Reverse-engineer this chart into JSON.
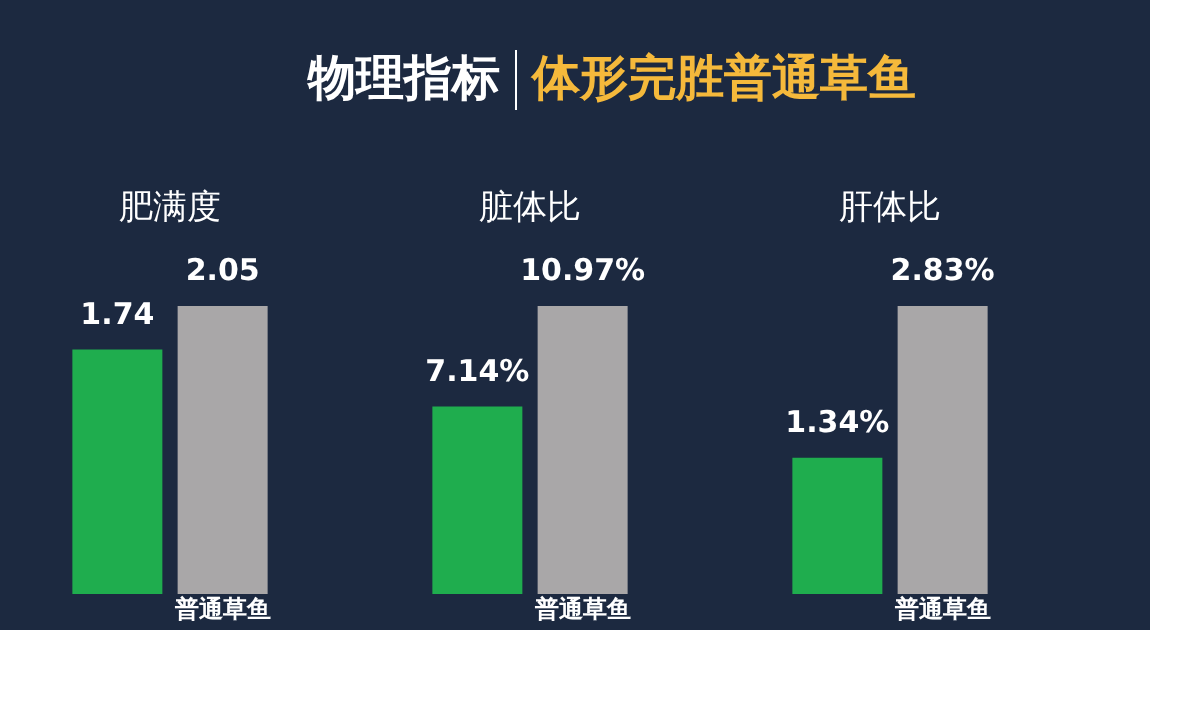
{
  "chart_data": [
    {
      "type": "other",
      "title": "物理指标",
      "subtitle": "体形完胜普通草鱼"
    },
    {
      "type": "bar",
      "title": "肥满度",
      "categories": [
        null,
        "普通草鱼"
      ],
      "values": [
        1.74,
        2.05
      ],
      "colors": [
        "#1fad4e",
        "#a9a7a8"
      ],
      "value_labels": [
        "1.74",
        "2.05"
      ],
      "tick_labels": "x",
      "grid": false
    },
    {
      "type": "bar",
      "title": "脏体比",
      "categories": [
        null,
        "普通草鱼"
      ],
      "values": [
        7.14,
        10.97
      ],
      "colors": [
        "#1fad4e",
        "#a9a7a8"
      ],
      "value_labels": [
        "7.14%",
        "10.97%"
      ],
      "tick_labels": "x",
      "grid": false
    },
    {
      "type": "bar",
      "title": "肝体比",
      "categories": [
        null,
        "普通草鱼"
      ],
      "values": [
        1.34,
        2.83
      ],
      "colors": [
        "#1fad4e",
        "#a9a7a8"
      ],
      "value_labels": [
        "1.34%",
        "2.83%"
      ],
      "tick_labels": "x",
      "grid": false
    }
  ]
}
